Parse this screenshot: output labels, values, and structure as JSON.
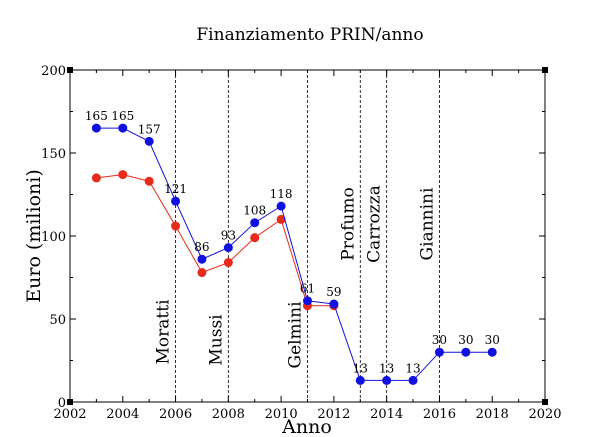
{
  "chart_data": {
    "type": "line",
    "title": "Finanziamento PRIN/anno",
    "xlabel": "Anno",
    "ylabel": "Euro (milioni)",
    "xlim": [
      2002,
      2020
    ],
    "ylim": [
      0,
      200
    ],
    "x_ticks": [
      2002,
      2004,
      2006,
      2008,
      2010,
      2012,
      2014,
      2016,
      2018,
      2020
    ],
    "y_ticks": [
      0,
      50,
      100,
      150,
      200
    ],
    "grid": false,
    "series": [
      {
        "color": "#1010e0",
        "x": [
          2003,
          2004,
          2005,
          2006,
          2007,
          2008,
          2009,
          2010,
          2011,
          2012,
          2013,
          2014,
          2015,
          2016,
          2017,
          2018
        ],
        "y": [
          165,
          165,
          157,
          121,
          86,
          93,
          108,
          118,
          61,
          59,
          13,
          13,
          13,
          30,
          30,
          30
        ],
        "labels": [
          "165",
          "165",
          "157",
          "121",
          "86",
          "93",
          "108",
          "118",
          "61",
          "59",
          "13",
          "13",
          "13",
          "30",
          "30",
          "30"
        ]
      },
      {
        "color": "#e82a1a",
        "x": [
          2003,
          2004,
          2005,
          2006,
          2007,
          2008,
          2009,
          2010,
          2011,
          2012
        ],
        "y": [
          135,
          137,
          133,
          106,
          78,
          84,
          99,
          110,
          58,
          58
        ]
      }
    ],
    "periods": [
      {
        "name": "Moratti",
        "start": 2006
      },
      {
        "name": "Mussi",
        "start": 2008
      },
      {
        "name": "Gelmini",
        "start": 2011
      },
      {
        "name": "Profumo",
        "start": 2013
      },
      {
        "name": "Carrozza",
        "start": 2014
      },
      {
        "name": "Giannini",
        "start": 2016
      }
    ]
  }
}
